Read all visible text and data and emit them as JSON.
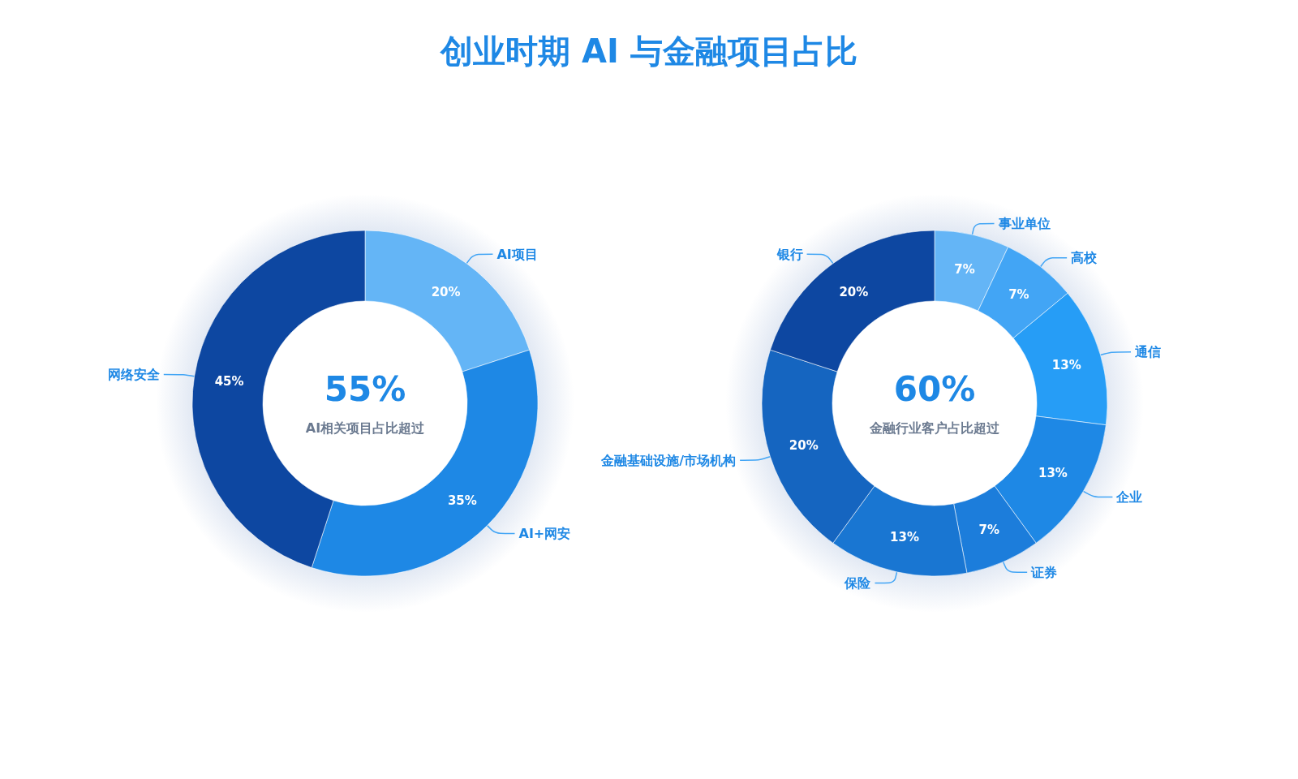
{
  "chart_data": [
    {
      "type": "donut",
      "title": "创业时期 AI 与金融项目占比",
      "categories": [
        "AI项目",
        "AI+网安",
        "网络安全"
      ],
      "values": [
        20,
        35,
        45
      ],
      "colors": [
        "#64b5f6",
        "#1e88e5",
        "#0d47a1"
      ],
      "value_labels": [
        "20%",
        "35%",
        "45%"
      ],
      "annotations": [
        "55%",
        "AI相关项目占比超过"
      ]
    },
    {
      "type": "donut",
      "categories": [
        "事业单位",
        "高校",
        "通信",
        "企业",
        "证券",
        "保险",
        "金融基础设施/市场机构",
        "银行"
      ],
      "values": [
        7,
        7,
        13,
        13,
        7,
        13,
        20,
        20
      ],
      "colors": [
        "#64b5f6",
        "#42a5f5",
        "#269df6",
        "#1e88e5",
        "#1c7ddb",
        "#1976d2",
        "#1565c0",
        "#0d47a1"
      ],
      "value_labels": [
        "7%",
        "7%",
        "13%",
        "13%",
        "7%",
        "13%",
        "20%",
        "20%"
      ],
      "annotations": [
        "60%",
        "金融行业客户占比超过"
      ]
    }
  ]
}
